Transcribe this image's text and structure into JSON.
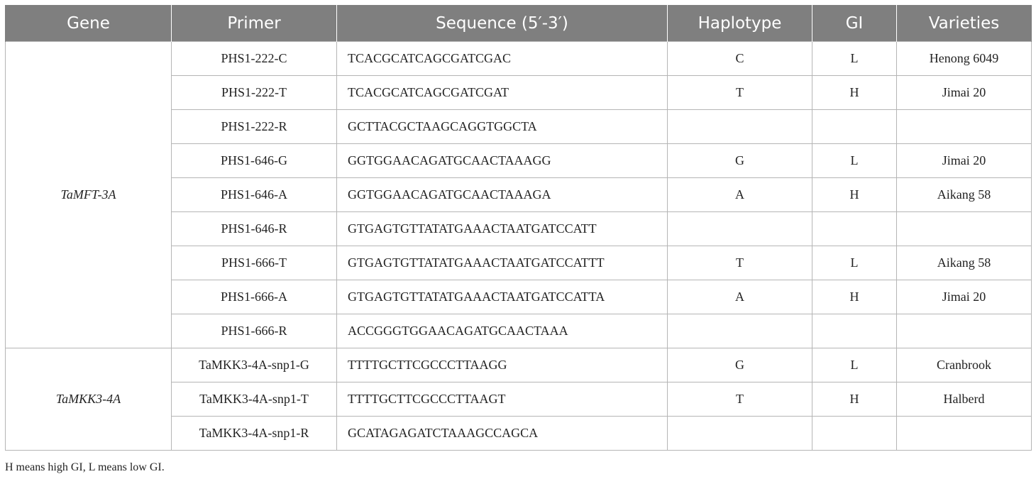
{
  "table": {
    "headers": [
      "Gene",
      "Primer",
      "Sequence (5′-3′)",
      "Haplotype",
      "GI",
      "Varieties"
    ],
    "groups": [
      {
        "gene": "TaMFT-3A",
        "rows": [
          {
            "primer": "PHS1-222-C",
            "sequence": "TCACGCATCAGCGATCGAC",
            "haplotype": "C",
            "gi": "L",
            "varieties": "Henong 6049"
          },
          {
            "primer": "PHS1-222-T",
            "sequence": "TCACGCATCAGCGATCGAT",
            "haplotype": "T",
            "gi": "H",
            "varieties": "Jimai 20"
          },
          {
            "primer": "PHS1-222-R",
            "sequence": "GCTTACGCTAAGCAGGTGGCTA",
            "haplotype": "",
            "gi": "",
            "varieties": ""
          },
          {
            "primer": "PHS1-646-G",
            "sequence": "GGTGGAACAGATGCAACTAAAGG",
            "haplotype": "G",
            "gi": "L",
            "varieties": "Jimai 20"
          },
          {
            "primer": "PHS1-646-A",
            "sequence": "GGTGGAACAGATGCAACTAAAGA",
            "haplotype": "A",
            "gi": "H",
            "varieties": "Aikang 58"
          },
          {
            "primer": "PHS1-646-R",
            "sequence": "GTGAGTGTTATATGAAACTAATGATCCATT",
            "haplotype": "",
            "gi": "",
            "varieties": ""
          },
          {
            "primer": "PHS1-666-T",
            "sequence": "GTGAGTGTTATATGAAACTAATGATCCATTT",
            "haplotype": "T",
            "gi": "L",
            "varieties": "Aikang 58"
          },
          {
            "primer": "PHS1-666-A",
            "sequence": "GTGAGTGTTATATGAAACTAATGATCCATTA",
            "haplotype": "A",
            "gi": "H",
            "varieties": "Jimai 20"
          },
          {
            "primer": "PHS1-666-R",
            "sequence": "ACCGGGTGGAACAGATGCAACTAAA",
            "haplotype": "",
            "gi": "",
            "varieties": ""
          }
        ]
      },
      {
        "gene": "TaMKK3-4A",
        "rows": [
          {
            "primer": "TaMKK3-4A-snp1-G",
            "sequence": "TTTTGCTTCGCCCTTAAGG",
            "haplotype": "G",
            "gi": "L",
            "varieties": "Cranbrook"
          },
          {
            "primer": "TaMKK3-4A-snp1-T",
            "sequence": "TTTTGCTTCGCCCTTAAGT",
            "haplotype": "T",
            "gi": "H",
            "varieties": "Halberd"
          },
          {
            "primer": "TaMKK3-4A-snp1-R",
            "sequence": "GCATAGAGATCTAAAGCCAGCA",
            "haplotype": "",
            "gi": "",
            "varieties": ""
          }
        ]
      }
    ]
  },
  "footnote": "H means high GI, L means low GI."
}
